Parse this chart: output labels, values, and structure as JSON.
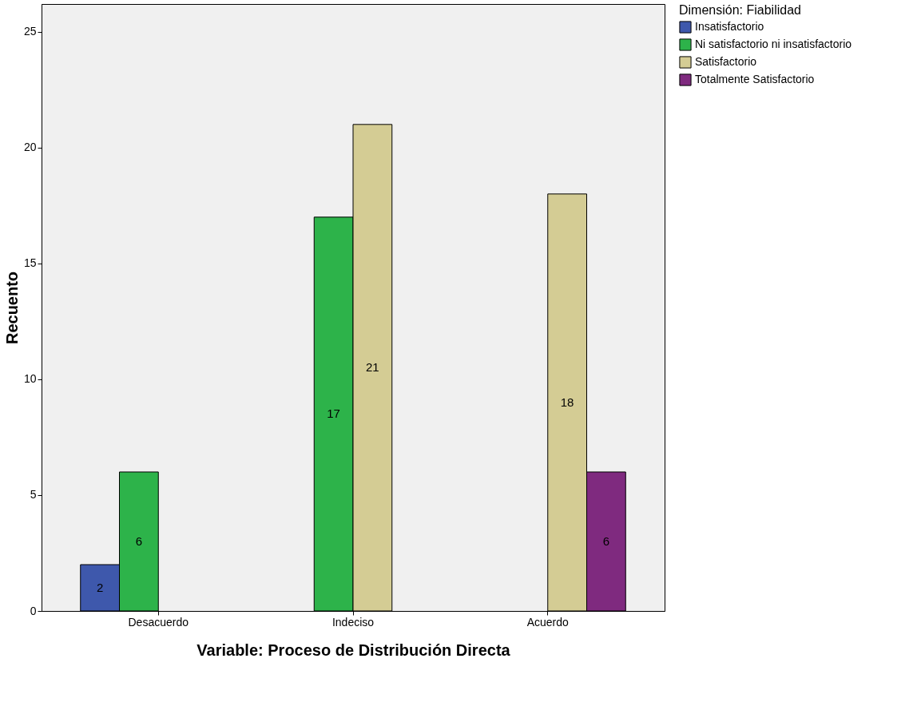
{
  "chart_data": {
    "type": "bar",
    "categories": [
      "Desacuerdo",
      "Indeciso",
      "Acuerdo"
    ],
    "series": [
      {
        "name": "Insatisfactorio",
        "color": "#3e58ac",
        "values": [
          2,
          null,
          null
        ]
      },
      {
        "name": "Ni satisfactorio ni insatisfactorio",
        "color": "#2db34a",
        "values": [
          6,
          17,
          null
        ]
      },
      {
        "name": "Satisfactorio",
        "color": "#d4cc94",
        "values": [
          null,
          21,
          18
        ]
      },
      {
        "name": "Totalmente Satisfactorio",
        "color": "#7f2a7f",
        "values": [
          null,
          null,
          6
        ]
      }
    ],
    "xlabel": "Variable: Proceso de Distribución Directa",
    "ylabel": "Recuento",
    "legend_title": "Dimensión: Fiabilidad",
    "ylim": [
      0,
      26.2
    ],
    "yticks": [
      0,
      5,
      10,
      15,
      20,
      25
    ],
    "grid": false,
    "legend": "top right",
    "data_labels": true
  }
}
